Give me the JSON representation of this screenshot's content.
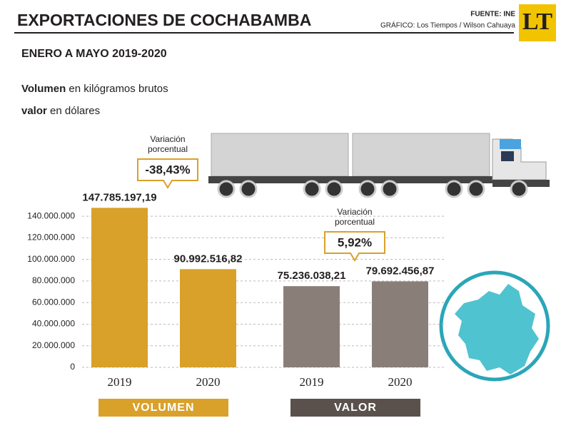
{
  "header": {
    "title": "EXPORTACIONES DE COCHABAMBA",
    "source": "FUENTE: INE",
    "credit": "GRÁFICO: Los Tiempos / Wilson Cahuaya",
    "logo": "LT"
  },
  "chart_data": {
    "type": "bar",
    "subtitle": "ENERO A MAYO 2019-2020",
    "notes": [
      [
        "Volumen",
        " en kilógramos brutos"
      ],
      [
        "valor",
        " en dólares"
      ]
    ],
    "ylim": [
      0,
      150000000
    ],
    "yticks": [
      0,
      {
        "value": 20000000,
        "label": "20.000.000"
      },
      {
        "value": 40000000,
        "label": "40.000.000"
      },
      {
        "value": 60000000,
        "label": "60.000.000"
      },
      {
        "value": 80000000,
        "label": "80.000.000"
      },
      {
        "value": 100000000,
        "label": "100.000.000"
      },
      {
        "value": 120000000,
        "label": "120.000.000"
      },
      {
        "value": 140000000,
        "label": "140.000.000"
      }
    ],
    "grid": true,
    "series": [
      {
        "name": "VOLUMEN",
        "color": "#d9a12a",
        "categories": [
          "2019",
          "2020"
        ],
        "values": [
          147785197.19,
          90992516.82
        ],
        "value_labels": [
          "147.785.197,19",
          "90.992.516,82"
        ],
        "annotation": [
          "Variación",
          "porcentual",
          "-38,43%"
        ]
      },
      {
        "name": "VALOR",
        "color": "#8a7f78",
        "categories": [
          "2019",
          "2020"
        ],
        "values": [
          75236038.21,
          79692456.87
        ],
        "value_labels": [
          "75.236.038,21",
          "79.692.456,87"
        ],
        "annotation": [
          "Variación",
          "porcentual",
          "5,92%"
        ]
      }
    ]
  }
}
